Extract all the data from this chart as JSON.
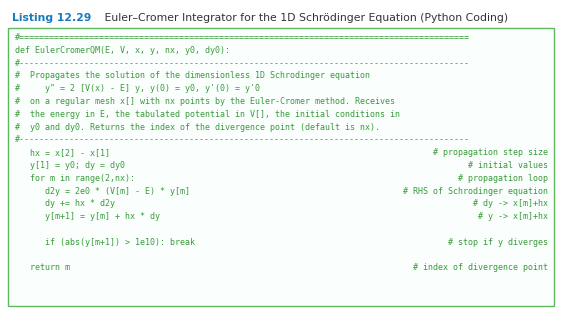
{
  "title_label": "Listing 12.29",
  "title_text": "   Euler–Cromer Integrator for the 1D Schrödinger Equation (Python Coding)",
  "title_color": "#1a7abf",
  "title_text_color": "#333333",
  "bg_color": "#ffffff",
  "box_bg": "#fafffe",
  "box_border": "#5db85d",
  "code_color": "#3a9a3a",
  "figsize": [
    5.62,
    3.12
  ],
  "dpi": 100,
  "lines": [
    {
      "text": "#==========================================================================================",
      "comment": "",
      "type": "sep"
    },
    {
      "text": "def EulerCromerQM(E, V, x, y, nx, y0, dy0):",
      "comment": "",
      "type": "code"
    },
    {
      "text": "#------------------------------------------------------------------------------------------",
      "comment": "",
      "type": "sep"
    },
    {
      "text": "#  Propagates the solution of the dimensionless 1D Schrodinger equation",
      "comment": "",
      "type": "comment"
    },
    {
      "text": "#     y\" = 2 [V(x) - E] y, y(0) = y0, y'(0) = y'0",
      "comment": "",
      "type": "comment"
    },
    {
      "text": "#  on a regular mesh x[] with nx points by the Euler-Cromer method. Receives",
      "comment": "",
      "type": "comment"
    },
    {
      "text": "#  the energy in E, the tabulated potential in V[], the initial conditions in",
      "comment": "",
      "type": "comment"
    },
    {
      "text": "#  y0 and dy0. Returns the index of the divergence point (default is nx).",
      "comment": "",
      "type": "comment"
    },
    {
      "text": "#------------------------------------------------------------------------------------------",
      "comment": "",
      "type": "sep"
    },
    {
      "text": "   hx = x[2] - x[1]",
      "comment": "# propagation step size",
      "type": "code_comment"
    },
    {
      "text": "   y[1] = y0; dy = dy0",
      "comment": "# initial values",
      "type": "code_comment"
    },
    {
      "text": "   for m in range(2,nx):",
      "comment": "# propagation loop",
      "type": "code_comment"
    },
    {
      "text": "      d2y = 2e0 * (V[m] - E) * y[m]",
      "comment": "# RHS of Schrodinger equation",
      "type": "code_comment"
    },
    {
      "text": "      dy += hx * d2y",
      "comment": "# dy -> x[m]+hx",
      "type": "code_comment"
    },
    {
      "text": "      y[m+1] = y[m] + hx * dy",
      "comment": "# y -> x[m]+hx",
      "type": "code_comment"
    },
    {
      "text": "",
      "comment": "",
      "type": "blank"
    },
    {
      "text": "      if (abs(y[m+1]) > 1e10): break",
      "comment": "# stop if y diverges",
      "type": "code_comment"
    },
    {
      "text": "",
      "comment": "",
      "type": "blank"
    },
    {
      "text": "   return m",
      "comment": "# index of divergence point",
      "type": "code_comment"
    }
  ]
}
